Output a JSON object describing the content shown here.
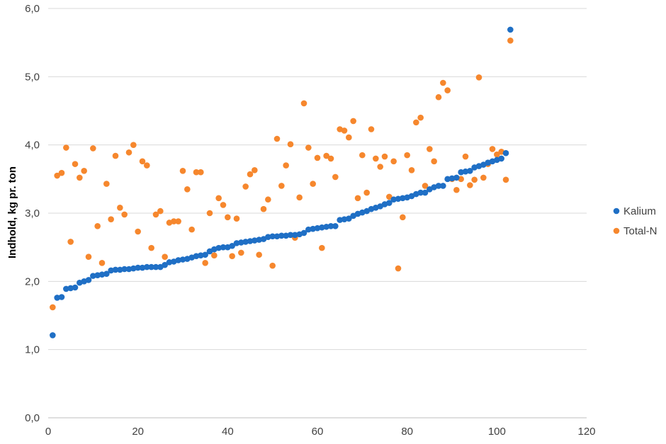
{
  "chart_data": {
    "type": "scatter",
    "title": "",
    "xlabel": "",
    "ylabel": "Indhold, kg pr. ton",
    "xlim": [
      0,
      120
    ],
    "ylim": [
      0,
      6
    ],
    "x_ticks": [
      "0",
      "20",
      "40",
      "60",
      "80",
      "100",
      "120"
    ],
    "y_ticks": [
      "0,0",
      "1,0",
      "2,0",
      "3,0",
      "4,0",
      "5,0",
      "6,0"
    ],
    "grid": "horizontal",
    "legend_position": "right",
    "series": [
      {
        "name": "Kalium",
        "color": "#1f6fc5",
        "x": [
          1,
          2,
          3,
          4,
          5,
          6,
          7,
          8,
          9,
          10,
          11,
          12,
          13,
          14,
          15,
          16,
          17,
          18,
          19,
          20,
          21,
          22,
          23,
          24,
          25,
          26,
          27,
          28,
          29,
          30,
          31,
          32,
          33,
          34,
          35,
          36,
          37,
          38,
          39,
          40,
          41,
          42,
          43,
          44,
          45,
          46,
          47,
          48,
          49,
          50,
          51,
          52,
          53,
          54,
          55,
          56,
          57,
          58,
          59,
          60,
          61,
          62,
          63,
          64,
          65,
          66,
          67,
          68,
          69,
          70,
          71,
          72,
          73,
          74,
          75,
          76,
          77,
          78,
          79,
          80,
          81,
          82,
          83,
          84,
          85,
          86,
          87,
          88,
          89,
          90,
          91,
          92,
          93,
          94,
          95,
          96,
          97,
          98,
          99,
          100,
          101,
          102,
          103
        ],
        "y": [
          1.21,
          1.76,
          1.77,
          1.89,
          1.9,
          1.91,
          1.98,
          2.0,
          2.02,
          2.08,
          2.09,
          2.1,
          2.11,
          2.16,
          2.17,
          2.17,
          2.18,
          2.18,
          2.19,
          2.2,
          2.2,
          2.21,
          2.21,
          2.21,
          2.21,
          2.24,
          2.28,
          2.29,
          2.31,
          2.32,
          2.33,
          2.35,
          2.37,
          2.38,
          2.39,
          2.44,
          2.47,
          2.49,
          2.5,
          2.5,
          2.52,
          2.56,
          2.57,
          2.58,
          2.59,
          2.6,
          2.61,
          2.62,
          2.65,
          2.66,
          2.66,
          2.67,
          2.67,
          2.68,
          2.68,
          2.69,
          2.71,
          2.76,
          2.77,
          2.78,
          2.79,
          2.8,
          2.81,
          2.81,
          2.9,
          2.91,
          2.92,
          2.96,
          2.99,
          3.01,
          3.03,
          3.06,
          3.08,
          3.1,
          3.13,
          3.15,
          3.2,
          3.21,
          3.22,
          3.23,
          3.25,
          3.28,
          3.3,
          3.3,
          3.35,
          3.38,
          3.4,
          3.4,
          3.5,
          3.51,
          3.52,
          3.6,
          3.61,
          3.62,
          3.67,
          3.69,
          3.71,
          3.74,
          3.76,
          3.78,
          3.8,
          3.88,
          5.69
        ]
      },
      {
        "name": "Total-N",
        "color": "#f6872d",
        "x": [
          1,
          2,
          3,
          4,
          5,
          6,
          7,
          8,
          9,
          10,
          11,
          12,
          13,
          14,
          15,
          16,
          17,
          18,
          19,
          20,
          21,
          22,
          23,
          24,
          25,
          26,
          27,
          28,
          29,
          30,
          31,
          32,
          33,
          34,
          35,
          36,
          37,
          38,
          39,
          40,
          41,
          42,
          43,
          44,
          45,
          46,
          47,
          48,
          49,
          50,
          51,
          52,
          53,
          54,
          55,
          56,
          57,
          58,
          59,
          60,
          61,
          62,
          63,
          64,
          65,
          66,
          67,
          68,
          69,
          70,
          71,
          72,
          73,
          74,
          75,
          76,
          77,
          78,
          79,
          80,
          81,
          82,
          83,
          84,
          85,
          86,
          87,
          88,
          89,
          90,
          91,
          92,
          93,
          94,
          95,
          96,
          97,
          98,
          99,
          100,
          101,
          102,
          103
        ],
        "y": [
          1.62,
          3.55,
          3.59,
          3.96,
          2.58,
          3.72,
          3.52,
          3.62,
          2.36,
          3.95,
          2.81,
          2.27,
          3.43,
          2.91,
          3.84,
          3.08,
          2.98,
          3.89,
          4.0,
          2.73,
          3.76,
          3.7,
          2.49,
          2.98,
          3.03,
          2.36,
          2.86,
          2.88,
          2.88,
          3.62,
          3.35,
          2.76,
          3.6,
          3.6,
          2.27,
          3.0,
          2.38,
          3.22,
          3.12,
          2.94,
          2.37,
          2.92,
          2.42,
          3.39,
          3.57,
          3.63,
          2.39,
          3.06,
          3.2,
          2.23,
          4.09,
          3.4,
          3.7,
          4.01,
          2.64,
          3.23,
          4.61,
          3.96,
          3.43,
          3.81,
          2.49,
          3.84,
          3.8,
          3.53,
          4.23,
          4.21,
          4.11,
          4.35,
          3.22,
          3.85,
          3.3,
          4.23,
          3.8,
          3.68,
          3.83,
          3.24,
          3.76,
          2.19,
          2.94,
          3.85,
          3.63,
          4.33,
          4.4,
          3.4,
          3.94,
          3.76,
          4.7,
          4.91,
          4.8,
          3.5,
          3.34,
          3.5,
          3.83,
          3.41,
          3.49,
          4.99,
          3.52,
          3.72,
          3.94,
          3.86,
          3.9,
          3.49,
          5.53
        ]
      }
    ]
  }
}
